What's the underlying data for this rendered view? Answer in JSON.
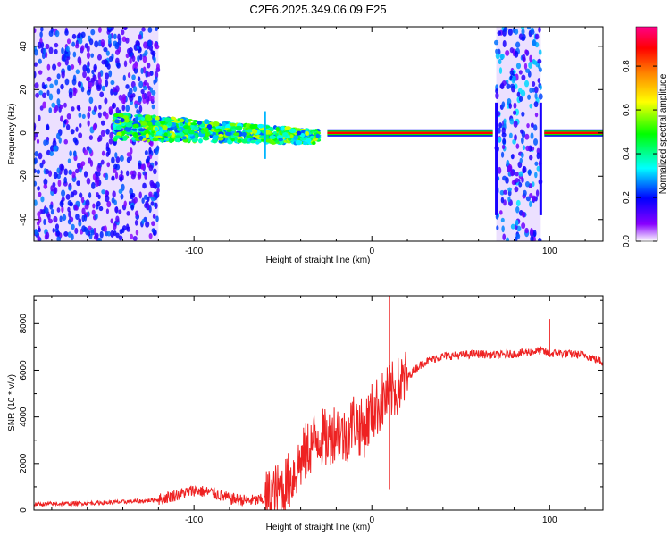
{
  "chart_data": [
    {
      "type": "heatmap",
      "title": "C2E6.2025.349.06.09.E25",
      "xlabel": "Height of straight line (km)",
      "ylabel": "Frequency (Hz)",
      "xlim": [
        -190,
        130
      ],
      "ylim": [
        -50,
        49
      ],
      "xticks": [
        -100,
        0,
        100
      ],
      "xtick_labels": [
        "-100",
        "0",
        "100"
      ],
      "yticks": [
        -40,
        -20,
        0,
        20,
        40
      ],
      "ytick_labels": [
        "-40",
        "-20",
        "0",
        "20",
        "40"
      ],
      "colorbar": {
        "label": "Normalized spectral amplitude",
        "range": [
          0,
          0.98
        ],
        "ticks": [
          0,
          0.2,
          0.4,
          0.6,
          0.8
        ],
        "tick_labels": [
          "0.0",
          "0.2",
          "0.4",
          "0.6",
          "0.8"
        ],
        "colors": [
          "#ffffff",
          "#8800ff",
          "#0000ff",
          "#00ffff",
          "#00ff00",
          "#ffff00",
          "#ff8800",
          "#ff0000",
          "#ff0088"
        ]
      },
      "features": [
        {
          "name": "broadband-noise",
          "x_range": [
            -190,
            -120
          ],
          "freq_range": [
            -50,
            49
          ],
          "amplitude": 0.25
        },
        {
          "name": "signal-band-wide",
          "x_range": [
            -145,
            -30
          ],
          "freq_center_start": 3,
          "freq_center_end": -2,
          "amplitude": 0.45
        },
        {
          "name": "carrier-line",
          "x_range": [
            -25,
            68
          ],
          "freq": 0,
          "amplitude": 0.9
        },
        {
          "name": "interference-block",
          "x_range": [
            70,
            95
          ],
          "freq_range": [
            -50,
            49
          ],
          "amplitude": 0.3
        },
        {
          "name": "carrier-line-2",
          "x_range": [
            97,
            130
          ],
          "freq": 0,
          "amplitude": 0.9
        }
      ]
    },
    {
      "type": "line",
      "xlabel": "Height of straight line (km)",
      "ylabel": "SNR (10 * v/v)",
      "xlim": [
        -190,
        130
      ],
      "ylim": [
        0,
        9200
      ],
      "xticks": [
        -100,
        0,
        100
      ],
      "xtick_labels": [
        "-100",
        "0",
        "100"
      ],
      "yticks": [
        0,
        2000,
        4000,
        6000,
        8000
      ],
      "ytick_labels": [
        "0",
        "2000",
        "4000",
        "6000",
        "8000"
      ],
      "series": [
        {
          "name": "SNR",
          "color": "#ee2222",
          "x": [
            -190,
            -170,
            -150,
            -130,
            -120,
            -110,
            -100,
            -90,
            -80,
            -70,
            -60,
            -50,
            -45,
            -40,
            -35,
            -30,
            -25,
            -20,
            -15,
            -10,
            -5,
            0,
            5,
            10,
            15,
            20,
            25,
            30,
            35,
            40,
            50,
            60,
            70,
            80,
            90,
            95,
            100,
            105,
            110,
            120,
            130
          ],
          "y": [
            250,
            280,
            320,
            380,
            450,
            650,
            850,
            750,
            500,
            400,
            450,
            900,
            1400,
            2100,
            2700,
            3200,
            3000,
            3500,
            3100,
            3900,
            3400,
            4200,
            4600,
            5000,
            5300,
            5700,
            6100,
            6350,
            6500,
            6600,
            6650,
            6700,
            6650,
            6700,
            6800,
            6850,
            6700,
            6750,
            6700,
            6650,
            6350
          ]
        }
      ],
      "annotations": [
        {
          "x": 10,
          "y": 9200,
          "note": "spike"
        },
        {
          "x": 10,
          "y": 900,
          "note": "dip"
        },
        {
          "x": 100,
          "y": 8200,
          "note": "spike"
        }
      ]
    }
  ]
}
